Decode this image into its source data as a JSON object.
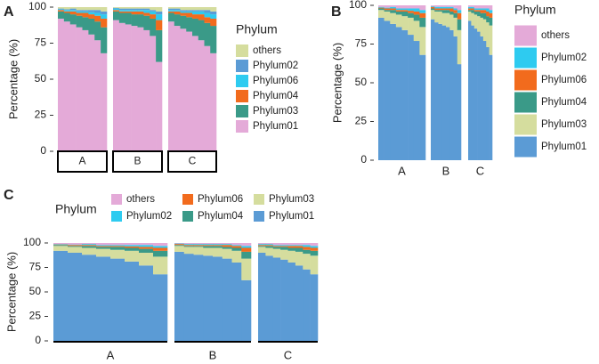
{
  "chart_data": [
    {
      "type": "stacked-bar-facet",
      "panel_label": "A",
      "ylabel": "Percentage (%)",
      "legend_title": "Phylum",
      "facets": [
        "A",
        "B",
        "C"
      ],
      "ylim": [
        0,
        100
      ],
      "yticks": [
        0,
        25,
        50,
        75,
        100
      ],
      "series": [
        {
          "name": "Phylum01",
          "color": "#e4aad8",
          "values": [
            [
              92,
              90,
              88,
              86,
              84,
              81,
              77,
              68
            ],
            [
              91,
              89,
              88,
              87,
              86,
              84,
              80,
              62
            ],
            [
              90,
              87,
              85,
              83,
              80,
              77,
              73,
              68
            ]
          ]
        },
        {
          "name": "Phylum03",
          "color": "#3a9a88",
          "values": [
            [
              5,
              6,
              7,
              8,
              9,
              11,
              13,
              18
            ],
            [
              6,
              7,
              8,
              8,
              9,
              10,
              12,
              22
            ],
            [
              6,
              8,
              9,
              10,
              12,
              14,
              16,
              19
            ]
          ]
        },
        {
          "name": "Phylum04",
          "color": "#f26b1d",
          "values": [
            [
              1,
              1,
              2,
              2,
              3,
              3,
              4,
              6
            ],
            [
              1,
              1,
              1,
              2,
              2,
              2,
              3,
              7
            ],
            [
              1,
              2,
              2,
              3,
              3,
              4,
              4,
              5
            ]
          ]
        },
        {
          "name": "Phylum06",
          "color": "#2ecbf0",
          "values": [
            [
              0.5,
              1,
              1,
              1,
              1,
              1.5,
              2,
              3
            ],
            [
              1,
              1,
              1,
              1,
              1,
              2,
              2,
              4
            ],
            [
              1,
              1,
              1,
              1,
              2,
              2,
              3,
              3
            ]
          ]
        },
        {
          "name": "Phylum02",
          "color": "#5b9bd5",
          "values": [
            [
              0.5,
              0.5,
              1,
              1,
              1,
              1.5,
              2,
              2
            ],
            [
              0.5,
              1,
              1,
              1,
              1,
              1,
              1,
              2
            ],
            [
              1,
              1,
              1,
              1,
              1,
              1,
              2,
              2
            ]
          ]
        },
        {
          "name": "others",
          "color": "#d5dd9e",
          "values": [
            [
              1,
              1.5,
              1,
              2,
              2,
              2,
              2,
              3
            ],
            [
              0.5,
              1,
              1,
              1,
              1,
              1,
              2,
              3
            ],
            [
              1,
              1,
              2,
              2,
              2,
              2,
              2,
              3
            ]
          ]
        }
      ]
    },
    {
      "type": "stacked-bar-facet",
      "panel_label": "B",
      "ylabel": "Percentage (%)",
      "legend_title": "Phylum",
      "facets": [
        "A",
        "B",
        "C"
      ],
      "ylim": [
        0,
        100
      ],
      "yticks": [
        0,
        25,
        50,
        75,
        100
      ],
      "series": [
        {
          "name": "Phylum01",
          "color": "#5b9bd5",
          "values": [
            [
              92,
              90,
              88,
              86,
              84,
              81,
              77,
              68
            ],
            [
              91,
              89,
              88,
              87,
              86,
              84,
              80,
              62
            ],
            [
              90,
              87,
              85,
              83,
              80,
              77,
              73,
              68
            ]
          ]
        },
        {
          "name": "Phylum03",
          "color": "#d5dd9e",
          "values": [
            [
              5,
              6,
              7,
              8,
              9,
              11,
              13,
              18
            ],
            [
              6,
              7,
              8,
              8,
              9,
              10,
              12,
              22
            ],
            [
              6,
              8,
              9,
              10,
              12,
              14,
              16,
              19
            ]
          ]
        },
        {
          "name": "Phylum04",
          "color": "#3a9a88",
          "values": [
            [
              1,
              1,
              2,
              2,
              3,
              3,
              4,
              6
            ],
            [
              1,
              1,
              1,
              2,
              2,
              2,
              3,
              7
            ],
            [
              1,
              2,
              2,
              3,
              3,
              4,
              4,
              5
            ]
          ]
        },
        {
          "name": "Phylum06",
          "color": "#f26b1d",
          "values": [
            [
              0.5,
              1,
              1,
              1,
              1,
              1.5,
              2,
              3
            ],
            [
              1,
              1,
              1,
              1,
              1,
              2,
              2,
              4
            ],
            [
              1,
              1,
              1,
              1,
              2,
              2,
              3,
              3
            ]
          ]
        },
        {
          "name": "Phylum02",
          "color": "#2ecbf0",
          "values": [
            [
              0.5,
              0.5,
              1,
              1,
              1,
              1.5,
              2,
              2
            ],
            [
              0.5,
              1,
              1,
              1,
              1,
              1,
              1,
              2
            ],
            [
              1,
              1,
              1,
              1,
              1,
              1,
              2,
              2
            ]
          ]
        },
        {
          "name": "others",
          "color": "#e4aad8",
          "values": [
            [
              1,
              1.5,
              1,
              2,
              2,
              2,
              2,
              3
            ],
            [
              0.5,
              1,
              1,
              1,
              1,
              1,
              2,
              3
            ],
            [
              1,
              1,
              2,
              2,
              2,
              2,
              2,
              3
            ]
          ]
        }
      ]
    },
    {
      "type": "stacked-bar-facet",
      "panel_label": "C",
      "ylabel": "Percentage (%)",
      "legend_title": "Phylum",
      "facets": [
        "A",
        "B",
        "C"
      ],
      "ylim": [
        0,
        100
      ],
      "yticks": [
        0,
        25,
        50,
        75,
        100
      ],
      "series": [
        {
          "name": "Phylum01",
          "color": "#5b9bd5",
          "values": [
            [
              92,
              90,
              88,
              86,
              84,
              81,
              77,
              68
            ],
            [
              91,
              89,
              88,
              87,
              86,
              84,
              80,
              62
            ],
            [
              90,
              87,
              85,
              83,
              80,
              77,
              73,
              68
            ]
          ]
        },
        {
          "name": "Phylum03",
          "color": "#d5dd9e",
          "values": [
            [
              5,
              6,
              7,
              8,
              9,
              11,
              13,
              18
            ],
            [
              6,
              7,
              8,
              8,
              9,
              10,
              12,
              22
            ],
            [
              6,
              8,
              9,
              10,
              12,
              14,
              16,
              19
            ]
          ]
        },
        {
          "name": "Phylum04",
          "color": "#3a9a88",
          "values": [
            [
              1,
              1,
              2,
              2,
              3,
              3,
              4,
              6
            ],
            [
              1,
              1,
              1,
              2,
              2,
              2,
              3,
              7
            ],
            [
              1,
              2,
              2,
              3,
              3,
              4,
              4,
              5
            ]
          ]
        },
        {
          "name": "Phylum06",
          "color": "#f26b1d",
          "values": [
            [
              0.5,
              1,
              1,
              1,
              1,
              1.5,
              2,
              3
            ],
            [
              1,
              1,
              1,
              1,
              1,
              2,
              2,
              4
            ],
            [
              1,
              1,
              1,
              1,
              2,
              2,
              3,
              3
            ]
          ]
        },
        {
          "name": "Phylum02",
          "color": "#2ecbf0",
          "values": [
            [
              0.5,
              0.5,
              1,
              1,
              1,
              1.5,
              2,
              2
            ],
            [
              0.5,
              1,
              1,
              1,
              1,
              1,
              1,
              2
            ],
            [
              1,
              1,
              1,
              1,
              1,
              1,
              2,
              2
            ]
          ]
        },
        {
          "name": "others",
          "color": "#e4aad8",
          "values": [
            [
              1,
              1.5,
              1,
              2,
              2,
              2,
              2,
              3
            ],
            [
              0.5,
              1,
              1,
              1,
              1,
              1,
              2,
              3
            ],
            [
              1,
              1,
              2,
              2,
              2,
              2,
              2,
              3
            ]
          ]
        }
      ]
    }
  ]
}
